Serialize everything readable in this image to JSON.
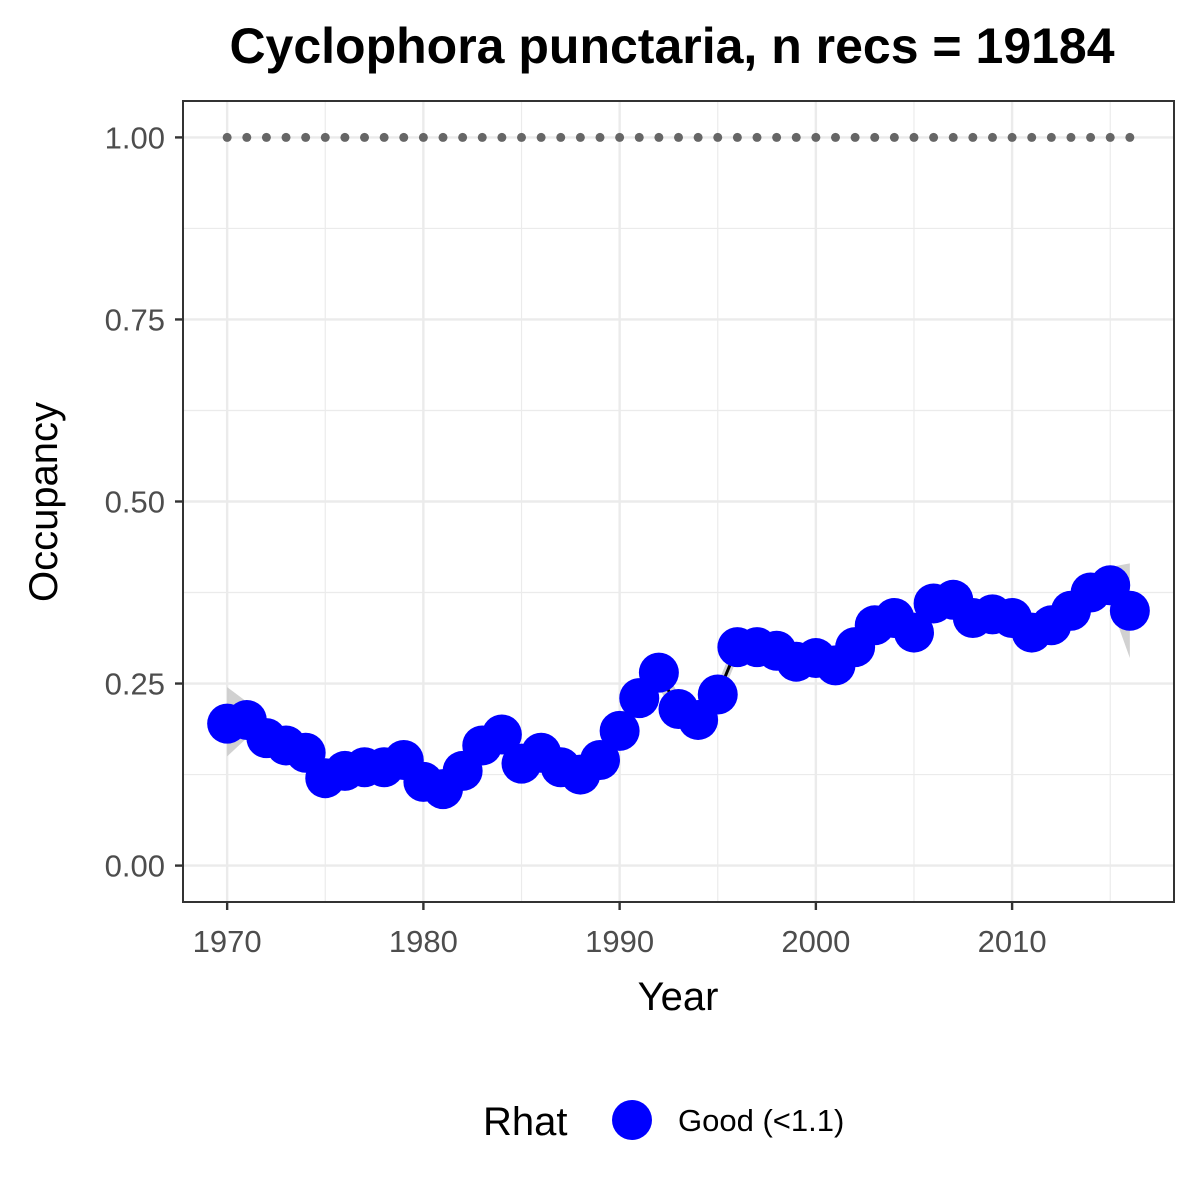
{
  "chart_data": {
    "type": "line",
    "title": "Cyclophora punctaria, n recs = 19184",
    "xlabel": "Year",
    "ylabel": "Occupancy",
    "xlim": [
      1967.75,
      2018.25
    ],
    "ylim": [
      -0.05,
      1.05
    ],
    "x_ticks": [
      1970,
      1980,
      1990,
      2000,
      2010
    ],
    "x_tick_labels": [
      "1970",
      "1980",
      "1990",
      "2000",
      "2010"
    ],
    "y_ticks": [
      0,
      0.25,
      0.5,
      0.75,
      1
    ],
    "y_tick_labels": [
      "0.00",
      "0.25",
      "0.50",
      "0.75",
      "1.00"
    ],
    "grid": true,
    "x": [
      1970,
      1971,
      1972,
      1973,
      1974,
      1975,
      1976,
      1977,
      1978,
      1979,
      1980,
      1981,
      1982,
      1983,
      1984,
      1985,
      1986,
      1987,
      1988,
      1989,
      1990,
      1991,
      1992,
      1993,
      1994,
      1995,
      1996,
      1997,
      1998,
      1999,
      2000,
      2001,
      2002,
      2003,
      2004,
      2005,
      2006,
      2007,
      2008,
      2009,
      2010,
      2011,
      2012,
      2013,
      2014,
      2015,
      2016
    ],
    "series": [
      {
        "name": "Good (<1.1)",
        "values": [
          0.195,
          0.2,
          0.175,
          0.165,
          0.155,
          0.12,
          0.13,
          0.135,
          0.135,
          0.145,
          0.115,
          0.105,
          0.13,
          0.165,
          0.18,
          0.14,
          0.155,
          0.135,
          0.125,
          0.145,
          0.185,
          0.23,
          0.265,
          0.215,
          0.2,
          0.235,
          0.3,
          0.3,
          0.295,
          0.28,
          0.285,
          0.275,
          0.3,
          0.33,
          0.34,
          0.32,
          0.36,
          0.365,
          0.34,
          0.345,
          0.34,
          0.32,
          0.33,
          0.35,
          0.375,
          0.385,
          0.35
        ],
        "lower": [
          0.15,
          0.175,
          0.155,
          0.14,
          0.135,
          0.105,
          0.115,
          0.12,
          0.12,
          0.12,
          0.09,
          0.085,
          0.11,
          0.145,
          0.155,
          0.125,
          0.14,
          0.12,
          0.11,
          0.13,
          0.165,
          0.21,
          0.245,
          0.195,
          0.185,
          0.22,
          0.285,
          0.285,
          0.28,
          0.265,
          0.27,
          0.26,
          0.285,
          0.315,
          0.325,
          0.305,
          0.345,
          0.35,
          0.325,
          0.33,
          0.325,
          0.305,
          0.315,
          0.335,
          0.355,
          0.36,
          0.285
        ],
        "upper": [
          0.245,
          0.225,
          0.195,
          0.185,
          0.175,
          0.13,
          0.145,
          0.15,
          0.15,
          0.165,
          0.135,
          0.125,
          0.15,
          0.185,
          0.205,
          0.155,
          0.17,
          0.15,
          0.14,
          0.16,
          0.205,
          0.25,
          0.285,
          0.235,
          0.215,
          0.25,
          0.315,
          0.315,
          0.31,
          0.295,
          0.3,
          0.29,
          0.315,
          0.345,
          0.355,
          0.335,
          0.375,
          0.38,
          0.355,
          0.36,
          0.355,
          0.335,
          0.345,
          0.365,
          0.395,
          0.41,
          0.415
        ]
      },
      {
        "name": "",
        "values": [
          1,
          1,
          1,
          1,
          1,
          1,
          1,
          1,
          1,
          1,
          1,
          1,
          1,
          1,
          1,
          1,
          1,
          1,
          1,
          1,
          1,
          1,
          1,
          1,
          1,
          1,
          1,
          1,
          1,
          1,
          1,
          1,
          1,
          1,
          1,
          1,
          1,
          1,
          1,
          1,
          1,
          1,
          1,
          1,
          1,
          1,
          1
        ]
      }
    ],
    "legend": {
      "title": "Rhat",
      "position": "bottom",
      "entries": [
        {
          "label": "Good (<1.1)",
          "color": "#0000ff"
        }
      ]
    },
    "colors": {
      "points": "#0000ff",
      "trend_line": "#000000",
      "ribbon": "#bdbdbd",
      "reference_dots": "#666666",
      "grid": "#ebebeb",
      "panel_border": "#333333"
    }
  }
}
